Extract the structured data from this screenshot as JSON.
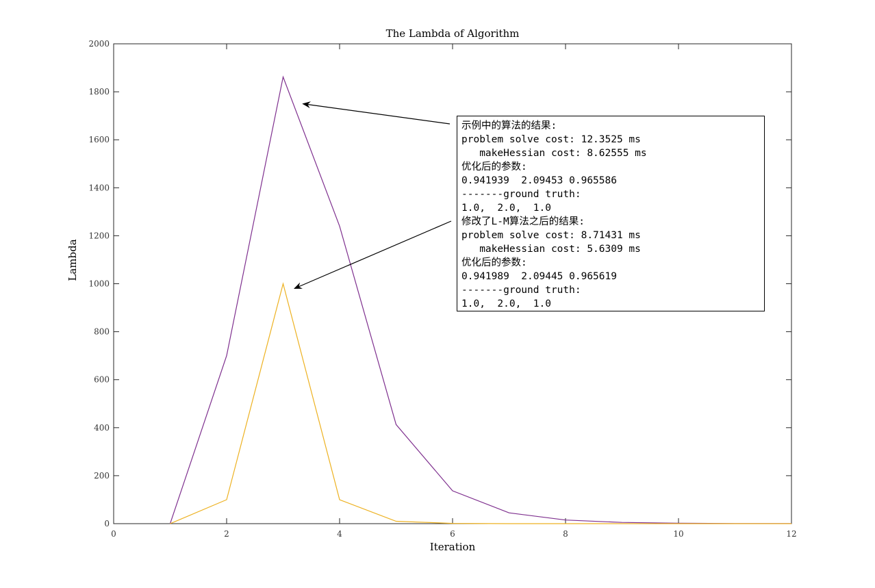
{
  "chart_data": {
    "type": "line",
    "title": "The Lambda of Algorithm",
    "xlabel": "Iteration",
    "ylabel": "Lambda",
    "xlim": [
      0,
      12
    ],
    "ylim": [
      0,
      2000
    ],
    "xticks": [
      0,
      2,
      4,
      6,
      8,
      10,
      12
    ],
    "yticks": [
      0,
      200,
      400,
      600,
      800,
      1000,
      1200,
      1400,
      1600,
      1800,
      2000
    ],
    "grid": false,
    "series": [
      {
        "color": "#7E2F8E",
        "x": [
          1,
          2,
          3,
          4,
          5,
          6,
          7,
          8,
          9,
          10,
          11,
          12
        ],
        "values": [
          0,
          700,
          1862,
          1240,
          413,
          137,
          45,
          15,
          5,
          1.7,
          0.6,
          0.2
        ]
      },
      {
        "color": "#EDB120",
        "x": [
          1,
          2,
          3,
          4,
          5,
          6,
          7,
          8,
          9,
          10,
          11,
          12
        ],
        "values": [
          0,
          100,
          1000,
          100,
          10,
          1,
          0.1,
          0.01,
          0.001,
          0.0001,
          0,
          0
        ]
      }
    ],
    "annotation": {
      "lines": [
        "示例中的算法的结果:",
        "problem solve cost: 12.3525 ms",
        "   makeHessian cost: 8.62555 ms",
        "优化后的参数:",
        "0.941939  2.09453 0.965586",
        "-------ground truth:",
        "1.0,  2.0,  1.0",
        "修改了L-M算法之后的结果:",
        "problem solve cost: 8.71431 ms",
        "   makeHessian cost: 5.6309 ms",
        "优化后的参数:",
        "0.941989  2.09445 0.965619",
        "-------ground truth:",
        "1.0,  2.0,  1.0"
      ],
      "arrows": [
        {
          "to_x": 3.35,
          "to_y": 1750
        },
        {
          "to_x": 3.2,
          "to_y": 980
        }
      ]
    }
  }
}
